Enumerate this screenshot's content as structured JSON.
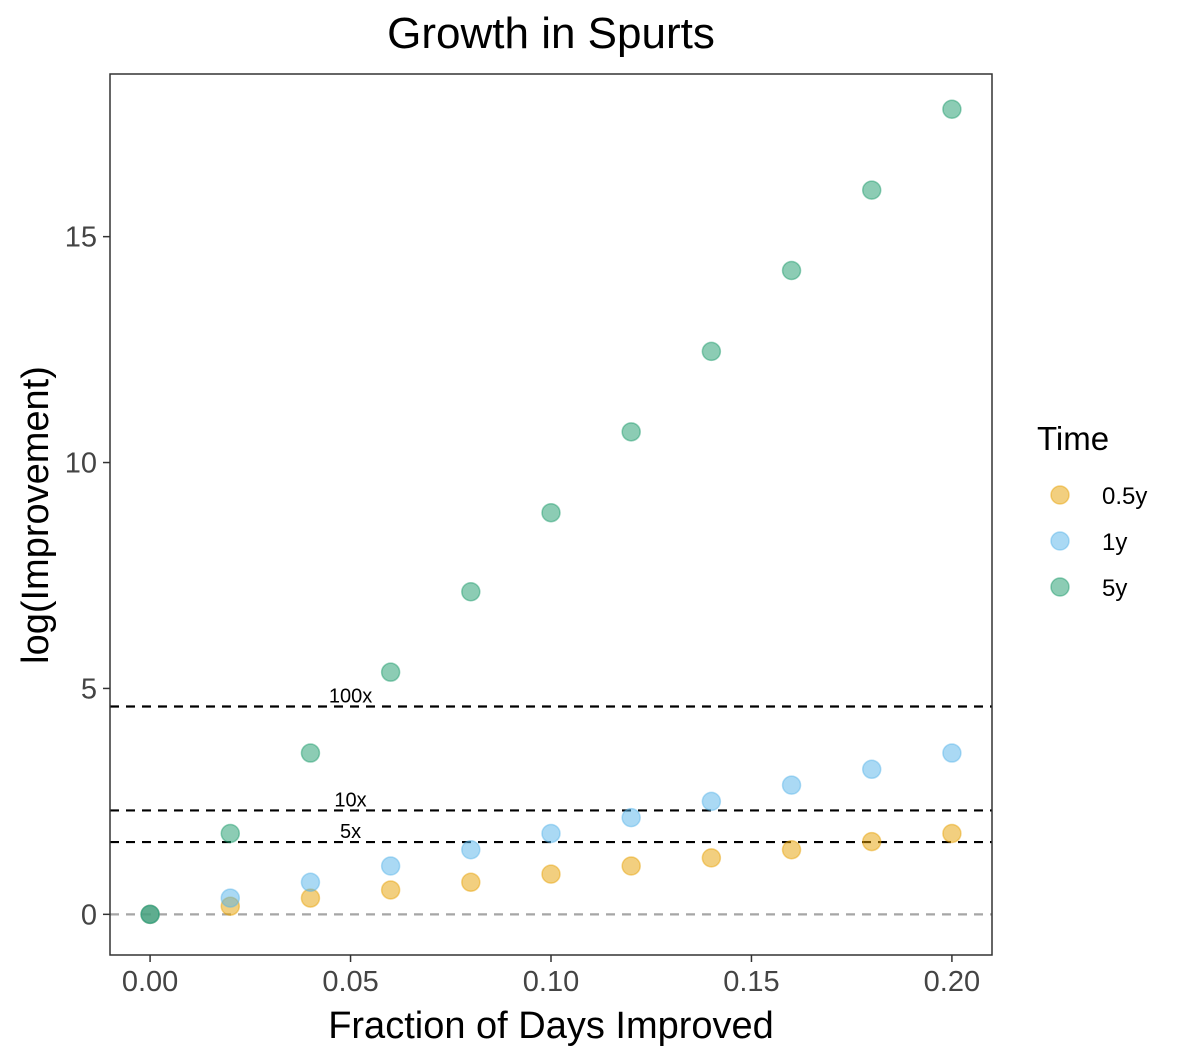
{
  "chart_data": {
    "type": "scatter",
    "title": "Growth in Spurts",
    "xlabel": "Fraction of Days Improved",
    "ylabel": "log(Improvement)",
    "xlim": [
      -0.01,
      0.21
    ],
    "ylim": [
      -0.9,
      18.6
    ],
    "x_ticks": [
      0.0,
      0.05,
      0.1,
      0.15,
      0.2
    ],
    "x_tick_labels": [
      "0.00",
      "0.05",
      "0.10",
      "0.15",
      "0.20"
    ],
    "y_ticks": [
      0,
      5,
      10,
      15
    ],
    "y_tick_labels": [
      "0",
      "5",
      "10",
      "15"
    ],
    "grid": false,
    "legend": {
      "title": "Time",
      "position": "right"
    },
    "series": [
      {
        "name": "0.5y",
        "color": "#E69F00",
        "x": [
          0,
          0.02,
          0.04,
          0.06,
          0.08,
          0.1,
          0.12,
          0.14,
          0.16,
          0.18,
          0.2
        ],
        "y": [
          0,
          0.18,
          0.36,
          0.54,
          0.71,
          0.89,
          1.07,
          1.25,
          1.43,
          1.61,
          1.79
        ]
      },
      {
        "name": "1y",
        "color": "#56B4E9",
        "x": [
          0,
          0.02,
          0.04,
          0.06,
          0.08,
          0.1,
          0.12,
          0.14,
          0.16,
          0.18,
          0.2
        ],
        "y": [
          0,
          0.36,
          0.71,
          1.07,
          1.43,
          1.79,
          2.14,
          2.5,
          2.86,
          3.21,
          3.57
        ]
      },
      {
        "name": "5y",
        "color": "#199A69",
        "x": [
          0,
          0.02,
          0.04,
          0.06,
          0.08,
          0.1,
          0.12,
          0.14,
          0.16,
          0.18,
          0.2
        ],
        "y": [
          0,
          1.79,
          3.57,
          5.36,
          7.14,
          8.89,
          10.68,
          12.46,
          14.25,
          16.03,
          17.82
        ]
      }
    ],
    "reference_lines": [
      {
        "label": "100x",
        "y": 4.6,
        "style": "dashed",
        "color": "#000000",
        "label_x": 0.05
      },
      {
        "label": "10x",
        "y": 2.3,
        "style": "dashed",
        "color": "#000000",
        "label_x": 0.05
      },
      {
        "label": "5x",
        "y": 1.6,
        "style": "dashed",
        "color": "#000000",
        "label_x": 0.05
      },
      {
        "label": "",
        "y": 0,
        "style": "dashed",
        "color": "#A6A6A6"
      }
    ]
  }
}
